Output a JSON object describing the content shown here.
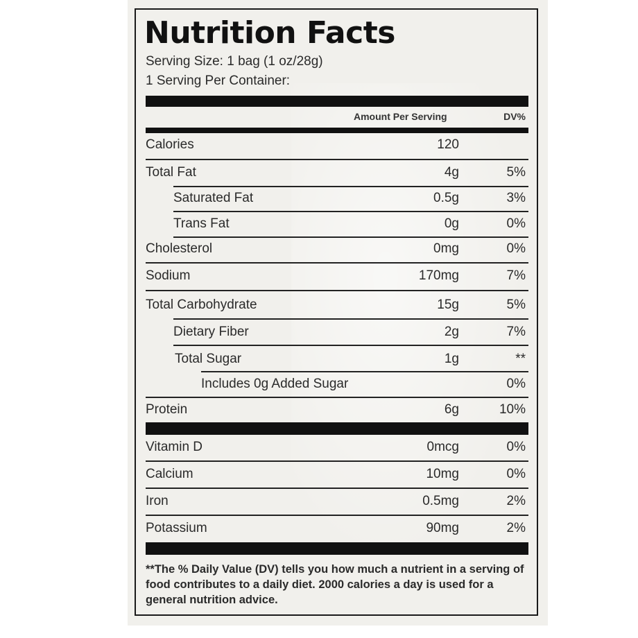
{
  "label": {
    "title": "Nutrition Facts",
    "serving_size": "Serving Size: 1 bag (1 oz/28g)",
    "servings_per_container": "1 Serving Per Container:",
    "column_amount": "Amount Per Serving",
    "column_dv": "DV%"
  },
  "nutrients": [
    {
      "name": "Calories",
      "amount": "120",
      "dv": ""
    },
    {
      "name": "Total Fat",
      "amount": "4g",
      "dv": "5%"
    },
    {
      "name": "Saturated Fat",
      "amount": "0.5g",
      "dv": "3%"
    },
    {
      "name": "Trans Fat",
      "amount": "0g",
      "dv": "0%"
    },
    {
      "name": "Cholesterol",
      "amount": "0mg",
      "dv": "0%"
    },
    {
      "name": "Sodium",
      "amount": "170mg",
      "dv": "7%"
    },
    {
      "name": "Total Carbohydrate",
      "amount": "15g",
      "dv": "5%"
    },
    {
      "name": "Dietary Fiber",
      "amount": "2g",
      "dv": "7%"
    },
    {
      "name": "Total Sugar",
      "amount": "1g",
      "dv": "**"
    },
    {
      "name": "Includes 0g Added Sugar",
      "amount": "",
      "dv": "0%"
    },
    {
      "name": "Protein",
      "amount": "6g",
      "dv": "10%"
    }
  ],
  "vitamins": [
    {
      "name": "Vitamin D",
      "amount": "0mcg",
      "dv": "0%"
    },
    {
      "name": "Calcium",
      "amount": "10mg",
      "dv": "0%"
    },
    {
      "name": "Iron",
      "amount": "0.5mg",
      "dv": "2%"
    },
    {
      "name": "Potassium",
      "amount": "90mg",
      "dv": "2%"
    }
  ],
  "footnote": "**The % Daily Value (DV) tells you how much a nutrient in a serving of food contributes to a daily diet. 2000 calories a day is used for a general nutrition advice."
}
